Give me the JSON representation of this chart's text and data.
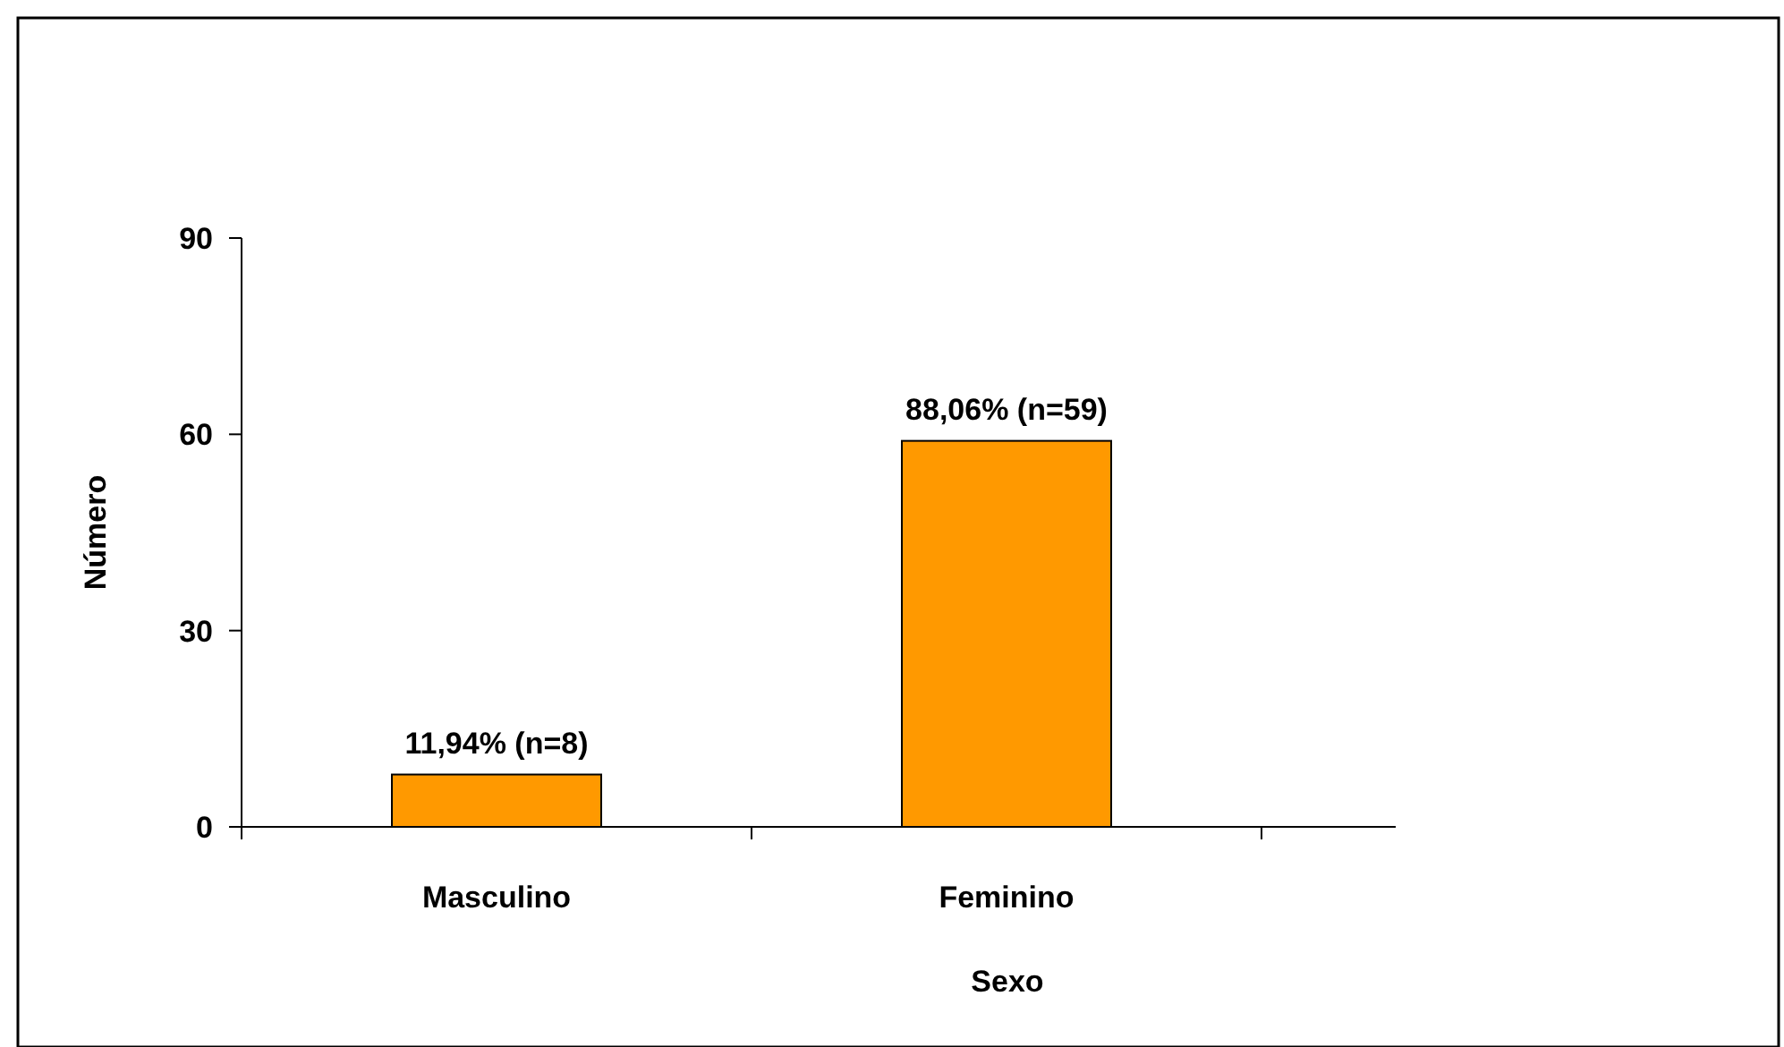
{
  "chart_data": {
    "type": "bar",
    "xlabel": "Sexo",
    "ylabel": "Número",
    "categories": [
      "Masculino",
      "Feminino"
    ],
    "values": [
      8,
      59
    ],
    "value_labels": [
      "11,94% (n=8)",
      "88,06% (n=59)"
    ],
    "color": "#ff9900",
    "ylim": [
      0,
      90
    ],
    "yticks": [
      0,
      30,
      60,
      90
    ],
    "grid": false
  }
}
